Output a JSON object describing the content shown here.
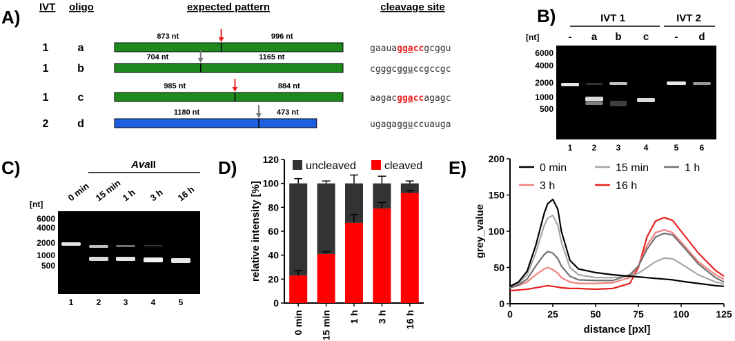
{
  "panels": {
    "A": {
      "label": "A)",
      "headers": {
        "ivt": "IVT",
        "oligo": "oligo",
        "pattern": "expected pattern",
        "site": "cleavage site"
      },
      "rows": [
        {
          "ivt": "1",
          "oligo": "a",
          "left_nt": "873 nt",
          "right_nt": "996 nt",
          "left_len": 873,
          "right_len": 996,
          "bar_color": "#1e8a1e",
          "arrow_color": "#e8201f",
          "seq_pre": "gaaua",
          "seq_b1": "gg",
          "seq_u": "a",
          "seq_b2": "cc",
          "seq_post": "gcggu",
          "site_color": "#e8201f"
        },
        {
          "ivt": "1",
          "oligo": "b",
          "left_nt": "704 nt",
          "right_nt": "1165 nt",
          "left_len": 704,
          "right_len": 1165,
          "bar_color": "#1e8a1e",
          "arrow_color": "#777777",
          "seq_pre": "cgggc",
          "seq_b1": "gg",
          "seq_u": "u",
          "seq_b2": "cc",
          "seq_post": "gccgc",
          "site_color": "#666666"
        },
        {
          "ivt": "1",
          "oligo": "c",
          "left_nt": "985 nt",
          "right_nt": "884 nt",
          "left_len": 985,
          "right_len": 884,
          "bar_color": "#1e8a1e",
          "arrow_color": "#e8201f",
          "seq_pre": "aagac",
          "seq_b1": "gg",
          "seq_u": "a",
          "seq_b2": "cc",
          "seq_post": "agagc",
          "site_color": "#e8201f"
        },
        {
          "ivt": "2",
          "oligo": "d",
          "left_nt": "1180 nt",
          "right_nt": "473 nt",
          "left_len": 1180,
          "right_len": 473,
          "bar_color": "#1e5fe0",
          "arrow_color": "#777777",
          "seq_pre": "ugaga",
          "seq_b1": "gg",
          "seq_u": "u",
          "seq_b2": "cc",
          "seq_post": "uauga",
          "site_color": "#666666"
        }
      ]
    },
    "B": {
      "label": "B)",
      "group1": "IVT 1",
      "group2": "IVT 2",
      "nt_label": "[nt]",
      "lane_headers": [
        "-",
        "a",
        "b",
        "c",
        "-",
        "d"
      ],
      "lane_numbers": [
        "1",
        "2",
        "3",
        "4",
        "5",
        "6"
      ],
      "ladder": [
        "6000",
        "4000",
        "2000",
        "1000",
        "500"
      ]
    },
    "C": {
      "label": "C)",
      "enzyme_a": "Ava",
      "enzyme_b": "II",
      "nt_label": "[nt]",
      "lane_headers": [
        "0 min",
        "15 min",
        "1 h",
        "3 h",
        "16 h"
      ],
      "lane_numbers": [
        "1",
        "2",
        "3",
        "4",
        "5"
      ],
      "ladder": [
        "6000",
        "4000",
        "2000",
        "1000",
        "500"
      ]
    },
    "D": {
      "label": "D)"
    },
    "E": {
      "label": "E)"
    }
  },
  "chart_data": [
    {
      "type": "bar",
      "subtype": "stacked",
      "panel": "D",
      "categories": [
        "0 min",
        "15 min",
        "1 h",
        "3 h",
        "16 h"
      ],
      "series": [
        {
          "name": "cleaved",
          "color": "#ff0000",
          "values": [
            23,
            41,
            67,
            79,
            92
          ],
          "errors": [
            4,
            2,
            7,
            5,
            2
          ]
        },
        {
          "name": "uncleaved",
          "color": "#333333",
          "values": [
            77,
            59,
            33,
            21,
            8
          ],
          "errors": [
            4,
            2,
            7,
            6,
            2
          ]
        }
      ],
      "ylabel": "relative intensity [%]",
      "ylim": [
        0,
        120
      ],
      "yticks": [
        0,
        20,
        40,
        60,
        80,
        100,
        120
      ],
      "legend": "top"
    },
    {
      "type": "line",
      "panel": "E",
      "xlabel": "distance [pxl]",
      "ylabel": "grey_value",
      "xlim": [
        0,
        125
      ],
      "ylim": [
        0,
        200
      ],
      "xticks": [
        0,
        25,
        50,
        75,
        100,
        125
      ],
      "yticks": [
        0,
        50,
        100,
        150,
        200
      ],
      "x": [
        0,
        5,
        10,
        15,
        20,
        22,
        25,
        28,
        30,
        35,
        40,
        50,
        60,
        70,
        75,
        80,
        85,
        90,
        95,
        100,
        110,
        120,
        125
      ],
      "series": [
        {
          "name": "0 min",
          "color": "#000000",
          "values": [
            24,
            30,
            45,
            80,
            125,
            138,
            144,
            130,
            100,
            60,
            48,
            43,
            40,
            38,
            37,
            36,
            35,
            34,
            33,
            31,
            28,
            25,
            24
          ]
        },
        {
          "name": "15 min",
          "color": "#a6a6a6",
          "values": [
            22,
            28,
            40,
            70,
            108,
            118,
            122,
            108,
            85,
            50,
            40,
            36,
            36,
            38,
            42,
            50,
            58,
            63,
            62,
            55,
            40,
            30,
            27
          ]
        },
        {
          "name": "1 h",
          "color": "#707070",
          "values": [
            22,
            26,
            34,
            52,
            68,
            72,
            70,
            62,
            52,
            38,
            33,
            32,
            32,
            40,
            52,
            75,
            92,
            97,
            95,
            82,
            55,
            36,
            30
          ]
        },
        {
          "name": "3 h",
          "color": "#f08080",
          "values": [
            22,
            25,
            30,
            40,
            48,
            50,
            47,
            42,
            36,
            30,
            28,
            28,
            29,
            36,
            52,
            80,
            98,
            102,
            98,
            85,
            58,
            40,
            34
          ]
        },
        {
          "name": "16 h",
          "color": "#e8201f",
          "values": [
            18,
            19,
            20,
            22,
            24,
            25,
            24,
            23,
            22,
            21,
            21,
            20,
            21,
            28,
            50,
            92,
            114,
            119,
            115,
            100,
            70,
            46,
            38
          ]
        }
      ],
      "legend": "top-left"
    }
  ]
}
